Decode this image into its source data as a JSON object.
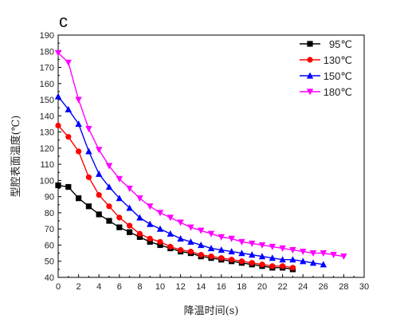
{
  "chart_data": {
    "type": "line",
    "panel_label": "c",
    "title": "",
    "xlabel": "降温时间(s)",
    "ylabel": "型腔表面温度(℃)",
    "xlim": [
      0,
      30
    ],
    "ylim": [
      40,
      190
    ],
    "x_ticks": [
      "0",
      "2",
      "4",
      "6",
      "8",
      "10",
      "12",
      "14",
      "16",
      "18",
      "20",
      "22",
      "24",
      "26",
      "28",
      "30"
    ],
    "y_ticks": [
      "40",
      "50",
      "60",
      "70",
      "80",
      "90",
      "100",
      "110",
      "120",
      "130",
      "140",
      "150",
      "160",
      "170",
      "180",
      "190"
    ],
    "grid": false,
    "legend_position": "top-right",
    "series": [
      {
        "name": "95℃",
        "color": "#000000",
        "marker": "square",
        "x": [
          0,
          1,
          2,
          3,
          4,
          5,
          6,
          7,
          8,
          9,
          10,
          11,
          12,
          13,
          14,
          15,
          16,
          17,
          18,
          19,
          20,
          21,
          22,
          23
        ],
        "y": [
          97,
          96,
          89,
          84,
          79,
          75,
          71,
          68,
          65,
          62,
          60,
          58,
          56,
          55,
          53,
          52,
          51,
          50,
          49,
          48,
          47,
          46,
          46,
          45
        ]
      },
      {
        "name": "130℃",
        "color": "#ff0000",
        "marker": "circle",
        "x": [
          0,
          1,
          2,
          3,
          4,
          5,
          6,
          7,
          8,
          9,
          10,
          11,
          12,
          13,
          14,
          15,
          16,
          17,
          18,
          19,
          20,
          21,
          22,
          23
        ],
        "y": [
          134,
          127,
          118,
          102,
          91,
          84,
          77,
          72,
          67,
          64,
          62,
          59,
          57,
          56,
          54,
          53,
          52,
          51,
          50,
          49,
          48,
          47,
          47,
          46
        ]
      },
      {
        "name": "150℃",
        "color": "#0000ff",
        "marker": "triangle-up",
        "x": [
          0,
          1,
          2,
          3,
          4,
          5,
          6,
          7,
          8,
          9,
          10,
          11,
          12,
          13,
          14,
          15,
          16,
          17,
          18,
          19,
          20,
          21,
          22,
          23,
          24,
          25,
          26
        ],
        "y": [
          152,
          144,
          135,
          118,
          104,
          96,
          89,
          83,
          77,
          73,
          70,
          67,
          64,
          62,
          60,
          58,
          57,
          56,
          55,
          54,
          53,
          52,
          51,
          51,
          50,
          49,
          48
        ]
      },
      {
        "name": "180℃",
        "color": "#ff00ff",
        "marker": "triangle-down",
        "x": [
          0,
          1,
          2,
          3,
          4,
          5,
          6,
          7,
          8,
          9,
          10,
          11,
          12,
          13,
          14,
          15,
          16,
          17,
          18,
          19,
          20,
          21,
          22,
          23,
          24,
          25,
          26,
          27,
          28
        ],
        "y": [
          179,
          173,
          150,
          132,
          119,
          109,
          101,
          95,
          89,
          84,
          80,
          77,
          74,
          71,
          69,
          67,
          65,
          64,
          62,
          61,
          60,
          59,
          58,
          57,
          56,
          55,
          55,
          54,
          53
        ]
      }
    ]
  }
}
